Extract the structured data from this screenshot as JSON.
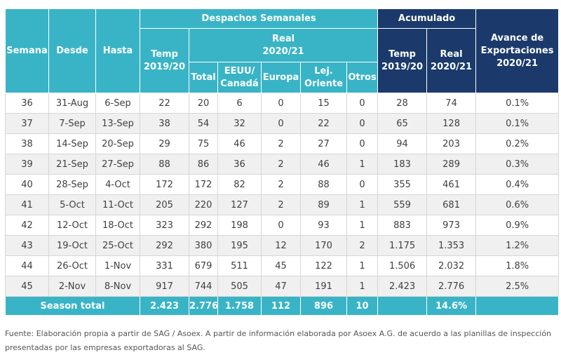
{
  "headers": {
    "semana": "Semana",
    "desde": "Desde",
    "hasta": "Hasta",
    "despachos": "Despachos Semanales",
    "acumulado": "Acumulado",
    "temp_weekly": [
      "Temp",
      "2019/20"
    ],
    "real_weekly": [
      "Real",
      "2020/21"
    ],
    "total": "Total",
    "eeuu": [
      "EEUU/",
      "Canadá"
    ],
    "europa": "Europa",
    "lej": [
      "Lej.",
      "Oriente"
    ],
    "otros": "Otros",
    "acc_temp": [
      "Temp",
      "2019/20"
    ],
    "acc_real": [
      "Real",
      "2020/21"
    ],
    "avance": [
      "Avance de",
      "Exportaciones",
      "2020/21"
    ]
  },
  "rows": [
    [
      "36",
      "31-Aug",
      "6-Sep",
      "22",
      "20",
      "6",
      "0",
      "15",
      "0",
      "28",
      "74",
      "0.1%"
    ],
    [
      "37",
      "7-Sep",
      "13-Sep",
      "38",
      "54",
      "32",
      "0",
      "22",
      "0",
      "65",
      "128",
      "0.1%"
    ],
    [
      "38",
      "14-Sep",
      "20-Sep",
      "29",
      "75",
      "46",
      "2",
      "27",
      "0",
      "94",
      "203",
      "0.2%"
    ],
    [
      "39",
      "21-Sep",
      "27-Sep",
      "88",
      "86",
      "36",
      "2",
      "46",
      "1",
      "183",
      "289",
      "0.3%"
    ],
    [
      "40",
      "28-Sep",
      "4-Oct",
      "172",
      "172",
      "82",
      "2",
      "88",
      "0",
      "355",
      "461",
      "0.4%"
    ],
    [
      "41",
      "5-Oct",
      "11-Oct",
      "205",
      "220",
      "127",
      "2",
      "89",
      "1",
      "559",
      "681",
      "0.6%"
    ],
    [
      "42",
      "12-Oct",
      "18-Oct",
      "323",
      "292",
      "198",
      "0",
      "93",
      "1",
      "883",
      "973",
      "0.9%"
    ],
    [
      "43",
      "19-Oct",
      "25-Oct",
      "292",
      "380",
      "195",
      "12",
      "170",
      "2",
      "1.175",
      "1.353",
      "1.2%"
    ],
    [
      "44",
      "26-Oct",
      "1-Nov",
      "331",
      "679",
      "511",
      "45",
      "122",
      "1",
      "1.506",
      "2.032",
      "1.8%"
    ],
    [
      "45",
      "2-Nov",
      "8-Nov",
      "917",
      "744",
      "505",
      "47",
      "191",
      "1",
      "2.423",
      "2.776",
      "2.5%"
    ]
  ],
  "total": {
    "label": "Season total",
    "temp": "2.423",
    "total": "2.776",
    "eeuu": "1.758",
    "europa": "112",
    "lej": "896",
    "otros": "10",
    "acc_temp": "",
    "acc_real": "14.6%",
    "avance": ""
  },
  "source_text": "Fuente: Elaboración propia a partir de SAG / Asoex. A partir de información elaborada por Asoex A.G. de acuerdo a las planillas de inspección presentadas por las empresas exportadoras al SAG.",
  "colors": {
    "teal": "#39b4c6",
    "navy": "#1b3a6b",
    "row_alt": "#f0f0f0"
  }
}
